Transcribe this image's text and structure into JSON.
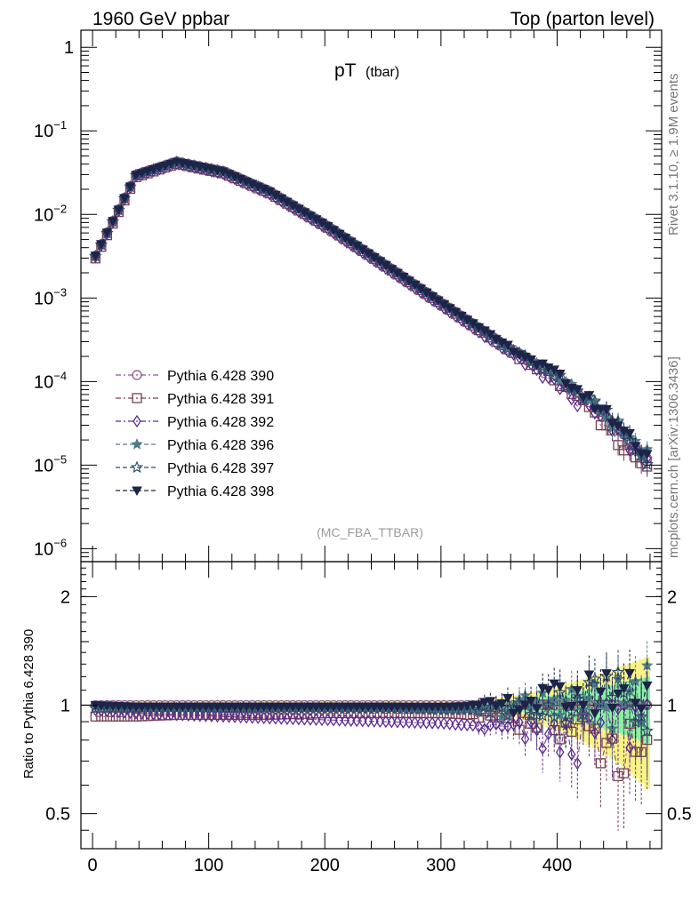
{
  "header": {
    "left": "1960 GeV ppbar",
    "right": "Top (parton level)"
  },
  "side_labels": {
    "rivet": "Rivet 3.1.10, ≥ 1.9M events",
    "mcplots": "mcplots.cern.ch [arXiv:1306.3436]"
  },
  "colors": {
    "390": "#8b5a8a",
    "391": "#7a3f52",
    "392": "#5b2b8f",
    "396": "#4f7d86",
    "397": "#2f4e6e",
    "398": "#1c2448",
    "band_yellow": "#f7f28a",
    "band_green": "#8cf0a3"
  },
  "chart_data": [
    {
      "type": "line",
      "title": "pT",
      "title_sub": "(tbar)",
      "analysis": "(MC_FBA_TTBAR)",
      "yscale": "log",
      "ylim": [
        7e-07,
        1.6
      ],
      "xlim": [
        -10,
        490
      ],
      "ytick_labels": [
        "1",
        "10",
        "10",
        "10",
        "10",
        "10",
        "10"
      ],
      "ytick_exponents": [
        "",
        "−1",
        "−2",
        "−3",
        "−4",
        "−5",
        "−6"
      ],
      "legend_position": "center-left",
      "series": [
        {
          "name": "Pythia 6.428 390",
          "marker": "circle-open",
          "line": "dash-dot"
        },
        {
          "name": "Pythia 6.428 391",
          "marker": "square-open",
          "line": "dash-dot"
        },
        {
          "name": "Pythia 6.428 392",
          "marker": "diamond-open",
          "line": "dash-dot"
        },
        {
          "name": "Pythia 6.428 396",
          "marker": "star-filled",
          "line": "dashed"
        },
        {
          "name": "Pythia 6.428 397",
          "marker": "star-open",
          "line": "dashed"
        },
        {
          "name": "Pythia 6.428 398",
          "marker": "triangle-down-filled",
          "line": "dashed"
        }
      ],
      "x": [
        2.5,
        37.5,
        72.5,
        112.5,
        152.5,
        202.5,
        252.5,
        302.5,
        352.5,
        402.5,
        442.5,
        477.5
      ],
      "y": [
        0.0032,
        0.03,
        0.043,
        0.033,
        0.019,
        0.0073,
        0.0025,
        0.00085,
        0.00029,
        0.00011,
        3.8e-05,
        1.2e-05
      ]
    },
    {
      "type": "line",
      "ylabel": "Ratio to Pythia 6.428 390",
      "ylim": [
        0.4,
        2.5
      ],
      "xlim": [
        -10,
        490
      ],
      "xtick_labels": [
        "0",
        "100",
        "200",
        "300",
        "400"
      ],
      "ytick_labels": [
        "0.5",
        "1",
        "2"
      ],
      "x": [
        2.5,
        37.5,
        72.5,
        112.5,
        152.5,
        202.5,
        252.5,
        302.5,
        352.5,
        402.5,
        442.5,
        477.5
      ],
      "series": [
        {
          "name": "Pythia 6.428 390",
          "values": [
            1.0,
            1.0,
            1.0,
            1.0,
            1.0,
            1.0,
            1.0,
            1.0,
            1.0,
            1.0,
            1.0,
            1.0
          ]
        },
        {
          "name": "Pythia 6.428 391",
          "values": [
            0.93,
            0.93,
            0.94,
            0.94,
            0.94,
            0.95,
            0.95,
            0.95,
            0.93,
            0.9,
            0.8,
            0.65
          ]
        },
        {
          "name": "Pythia 6.428 392",
          "values": [
            0.97,
            0.95,
            0.94,
            0.93,
            0.92,
            0.91,
            0.9,
            0.89,
            0.86,
            0.8,
            0.85,
            0.95
          ]
        },
        {
          "name": "Pythia 6.428 396",
          "values": [
            0.99,
            0.98,
            0.98,
            0.98,
            0.98,
            0.98,
            0.98,
            0.97,
            0.97,
            1.05,
            1.0,
            1.1
          ]
        },
        {
          "name": "Pythia 6.428 397",
          "values": [
            0.98,
            0.98,
            0.98,
            0.98,
            0.98,
            0.98,
            0.98,
            0.97,
            0.97,
            1.0,
            1.1,
            1.05
          ]
        },
        {
          "name": "Pythia 6.428 398",
          "values": [
            1.0,
            0.99,
            0.99,
            0.99,
            0.99,
            0.99,
            0.99,
            0.99,
            1.0,
            1.05,
            1.1,
            1.15
          ]
        }
      ]
    }
  ]
}
